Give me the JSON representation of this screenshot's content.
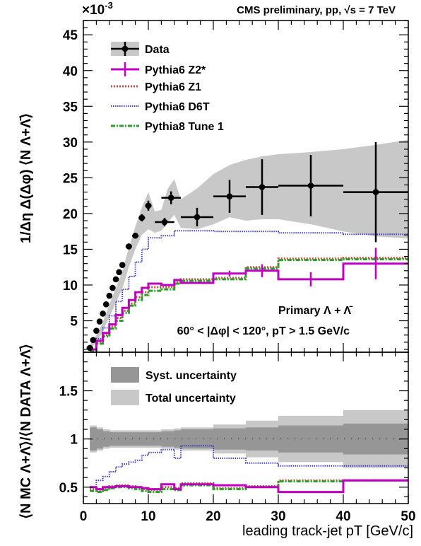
{
  "header": {
    "title": "CMS preliminary, pp, √s = 7 TeV",
    "exponent_label": "×10",
    "exponent_power": "-3"
  },
  "annotation": {
    "species": "Primary Λ + Λ̄",
    "cuts": "60° < |Δφ| < 120°, pT > 1.5 GeV/c"
  },
  "colors": {
    "data": "#000000",
    "band_total": "#c8c8c8",
    "band_syst": "#969696",
    "z2star": "#c000c0",
    "z1": "#c8504b",
    "d6t": "#3c3cc0",
    "pythia8": "#28a028"
  },
  "chart_data": [
    {
      "type": "line",
      "panel": "top",
      "xlabel": "leading track-jet pT [GeV/c]",
      "ylabel": "1/Δη Δ(Δφ) ⟨N Λ+Λ̄⟩",
      "xlim": [
        0,
        50
      ],
      "ylim": [
        0.6,
        47
      ],
      "x_ticks": [
        "0",
        "10",
        "20",
        "30",
        "40",
        "50"
      ],
      "y_ticks": [
        "5",
        "10",
        "15",
        "20",
        "25",
        "30",
        "35",
        "40",
        "45"
      ],
      "y_scale_note": "×10^-3",
      "legend_position": "top-left",
      "legend": [
        "Data",
        "Pythia6 Z2*",
        "Pythia6 Z1",
        "Pythia6 D6T",
        "Pythia8 Tune 1"
      ],
      "series": [
        {
          "name": "Data",
          "points": [
            {
              "x": 1.0,
              "y": 1.2,
              "xerr": 0.5,
              "yerr": 0.3
            },
            {
              "x": 1.5,
              "y": 2.3,
              "xerr": 0.25,
              "yerr": 0.3
            },
            {
              "x": 2.0,
              "y": 3.6,
              "xerr": 0.25,
              "yerr": 0.3
            },
            {
              "x": 2.5,
              "y": 4.9,
              "xerr": 0.25,
              "yerr": 0.3
            },
            {
              "x": 3.0,
              "y": 6.0,
              "xerr": 0.25,
              "yerr": 0.3
            },
            {
              "x": 3.5,
              "y": 7.3,
              "xerr": 0.25,
              "yerr": 0.3
            },
            {
              "x": 4.0,
              "y": 8.5,
              "xerr": 0.25,
              "yerr": 0.3
            },
            {
              "x": 4.5,
              "y": 9.6,
              "xerr": 0.25,
              "yerr": 0.3
            },
            {
              "x": 5.0,
              "y": 10.8,
              "xerr": 0.25,
              "yerr": 0.3
            },
            {
              "x": 5.5,
              "y": 11.8,
              "xerr": 0.25,
              "yerr": 0.3
            },
            {
              "x": 6.0,
              "y": 12.8,
              "xerr": 0.25,
              "yerr": 0.3
            },
            {
              "x": 7.0,
              "y": 15.4,
              "xerr": 0.5,
              "yerr": 0.4
            },
            {
              "x": 8.0,
              "y": 16.9,
              "xerr": 0.5,
              "yerr": 0.4
            },
            {
              "x": 9.0,
              "y": 19.4,
              "xerr": 0.5,
              "yerr": 0.5
            },
            {
              "x": 10.0,
              "y": 21.1,
              "xerr": 0.5,
              "yerr": 0.7
            },
            {
              "x": 12.5,
              "y": 18.8,
              "xerr": 1.5,
              "yerr": 0.6
            },
            {
              "x": 13.5,
              "y": 22.2,
              "xerr": 1.5,
              "yerr": 0.9
            },
            {
              "x": 17.5,
              "y": 19.5,
              "xerr": 2.5,
              "yerr": 1.3
            },
            {
              "x": 22.5,
              "y": 22.4,
              "xerr": 2.5,
              "yerr": 2.3
            },
            {
              "x": 27.5,
              "y": 23.7,
              "xerr": 2.5,
              "yerr": 3.9
            },
            {
              "x": 35.0,
              "y": 23.9,
              "xerr": 5.0,
              "yerr": 4.3
            },
            {
              "x": 45.0,
              "y": 23.0,
              "xerr": 5.0,
              "yerr": 7.0
            }
          ],
          "total_uncertainty_band": {
            "x": [
              1,
              2,
              3,
              4,
              5,
              6,
              7,
              8,
              9,
              10,
              11,
              12,
              13,
              14,
              15,
              17.5,
              20,
              22.5,
              25,
              27.5,
              30,
              35,
              40,
              45,
              50
            ],
            "low": [
              0.9,
              2.0,
              3.5,
              5.5,
              7.5,
              9.5,
              12.5,
              15.0,
              17.0,
              17.8,
              17.3,
              17.6,
              18.8,
              19.8,
              18.0,
              17.8,
              18.5,
              19.5,
              19.0,
              19.2,
              19.2,
              18.5,
              17.5,
              16.8,
              16.5
            ],
            "high": [
              1.6,
              3.0,
              4.8,
              7.3,
              9.6,
              12.0,
              15.2,
              18.2,
              20.8,
              23.0,
              20.3,
              20.5,
              23.5,
              24.8,
              22.0,
              23.5,
              25.5,
              26.8,
              27.5,
              28.0,
              28.3,
              28.6,
              29.0,
              29.6,
              30.3
            ]
          }
        },
        {
          "name": "Pythia6 Z2*",
          "style": "histogram",
          "edges": [
            1,
            2,
            3,
            4,
            5,
            6,
            7,
            8,
            9,
            10,
            12,
            14,
            15,
            20,
            25,
            30,
            40,
            50
          ],
          "values": [
            1.0,
            2.2,
            3.3,
            4.5,
            5.8,
            6.8,
            7.9,
            9.0,
            9.6,
            10.2,
            10.0,
            10.7,
            10.3,
            11.6,
            12.0,
            10.8,
            13.0
          ],
          "points": [
            {
              "x": 22.5,
              "y": 11.6,
              "yerr": 0.4
            },
            {
              "x": 27.5,
              "y": 12.0,
              "yerr": 0.9
            },
            {
              "x": 35.0,
              "y": 10.8,
              "yerr": 1.0
            },
            {
              "x": 45.0,
              "y": 13.0,
              "yerr": 2.2
            }
          ]
        },
        {
          "name": "Pythia6 Z1",
          "style": "histogram",
          "edges": [
            1,
            2,
            3,
            4,
            5,
            6,
            7,
            8,
            9,
            10,
            12,
            14,
            15,
            20,
            25,
            30,
            40,
            50
          ],
          "values": [
            0.9,
            1.9,
            3.0,
            4.2,
            5.4,
            6.4,
            7.4,
            8.3,
            9.0,
            9.7,
            9.7,
            10.5,
            10.8,
            11.0,
            12.5,
            13.7,
            13.8
          ]
        },
        {
          "name": "Pythia6 D6T",
          "style": "histogram",
          "edges": [
            1,
            2,
            3,
            4,
            5,
            6,
            7,
            8,
            9,
            10,
            12,
            14,
            15,
            20,
            25,
            30,
            40,
            50
          ],
          "values": [
            1.0,
            2.5,
            4.0,
            5.7,
            7.7,
            9.4,
            11.2,
            13.2,
            15.0,
            16.6,
            16.9,
            17.6,
            17.6,
            17.5,
            17.5,
            17.3,
            17.1
          ]
        },
        {
          "name": "Pythia8 Tune 1",
          "style": "histogram",
          "edges": [
            1,
            2,
            3,
            4,
            5,
            6,
            7,
            8,
            9,
            10,
            12,
            14,
            15,
            20,
            25,
            30,
            40,
            50
          ],
          "values": [
            0.8,
            1.8,
            2.8,
            3.9,
            5.0,
            6.1,
            7.1,
            7.9,
            8.6,
            9.2,
            9.4,
            10.2,
            10.6,
            10.8,
            12.3,
            13.5,
            13.6
          ]
        }
      ]
    },
    {
      "type": "line",
      "panel": "bottom",
      "xlabel": "leading track-jet pT [GeV/c]",
      "ylabel": "⟨N MC Λ+Λ̄⟩/⟨N DATA Λ+Λ̄⟩",
      "xlim": [
        0,
        50
      ],
      "ylim": [
        0.33,
        1.9
      ],
      "x_ticks": [
        "0",
        "10",
        "20",
        "30",
        "40",
        "50"
      ],
      "y_ticks": [
        "0.5",
        "1",
        "1.5"
      ],
      "legend_position": "top-left",
      "legend": [
        "Syst. uncertainty",
        "Total uncertainty"
      ],
      "bands": {
        "edges": [
          1,
          2,
          3,
          4,
          5,
          6,
          7,
          8,
          9,
          10,
          12,
          14,
          15,
          20,
          25,
          30,
          40,
          50
        ],
        "syst_half_width": [
          0.12,
          0.1,
          0.08,
          0.07,
          0.07,
          0.07,
          0.07,
          0.07,
          0.07,
          0.07,
          0.08,
          0.09,
          0.1,
          0.11,
          0.12,
          0.14,
          0.16
        ],
        "total_half_width": [
          0.14,
          0.12,
          0.1,
          0.09,
          0.09,
          0.09,
          0.09,
          0.09,
          0.09,
          0.09,
          0.1,
          0.11,
          0.12,
          0.15,
          0.19,
          0.24,
          0.3
        ]
      },
      "series": [
        {
          "name": "Pythia6 Z2*",
          "edges": [
            1,
            2,
            3,
            4,
            5,
            6,
            7,
            8,
            9,
            10,
            12,
            14,
            15,
            20,
            25,
            30,
            40,
            50
          ],
          "values": [
            0.5,
            0.48,
            0.5,
            0.5,
            0.51,
            0.51,
            0.5,
            0.5,
            0.49,
            0.48,
            0.53,
            0.48,
            0.53,
            0.52,
            0.5,
            0.45,
            0.57
          ]
        },
        {
          "name": "Pythia6 Z1",
          "edges": [
            1,
            2,
            3,
            4,
            5,
            6,
            7,
            8,
            9,
            10,
            12,
            14,
            15,
            20,
            25,
            30,
            40,
            50
          ],
          "values": [
            0.48,
            0.46,
            0.49,
            0.51,
            0.52,
            0.52,
            0.51,
            0.5,
            0.48,
            0.47,
            0.5,
            0.49,
            0.54,
            0.49,
            0.51,
            0.57,
            0.57
          ]
        },
        {
          "name": "Pythia6 D6T",
          "edges": [
            1,
            2,
            3,
            4,
            5,
            6,
            7,
            8,
            9,
            10,
            12,
            14,
            15,
            20,
            25,
            30,
            40,
            50
          ],
          "values": [
            0.5,
            0.57,
            0.61,
            0.66,
            0.71,
            0.74,
            0.76,
            0.78,
            0.83,
            0.86,
            0.89,
            0.8,
            0.93,
            0.8,
            0.75,
            0.72,
            0.72
          ]
        },
        {
          "name": "Pythia8 Tune 1",
          "edges": [
            1,
            2,
            3,
            4,
            5,
            6,
            7,
            8,
            9,
            10,
            12,
            14,
            15,
            20,
            25,
            30,
            40,
            50
          ],
          "values": [
            0.46,
            0.45,
            0.47,
            0.49,
            0.5,
            0.5,
            0.49,
            0.48,
            0.46,
            0.45,
            0.48,
            0.47,
            0.52,
            0.48,
            0.5,
            0.56,
            0.57
          ]
        }
      ]
    }
  ]
}
